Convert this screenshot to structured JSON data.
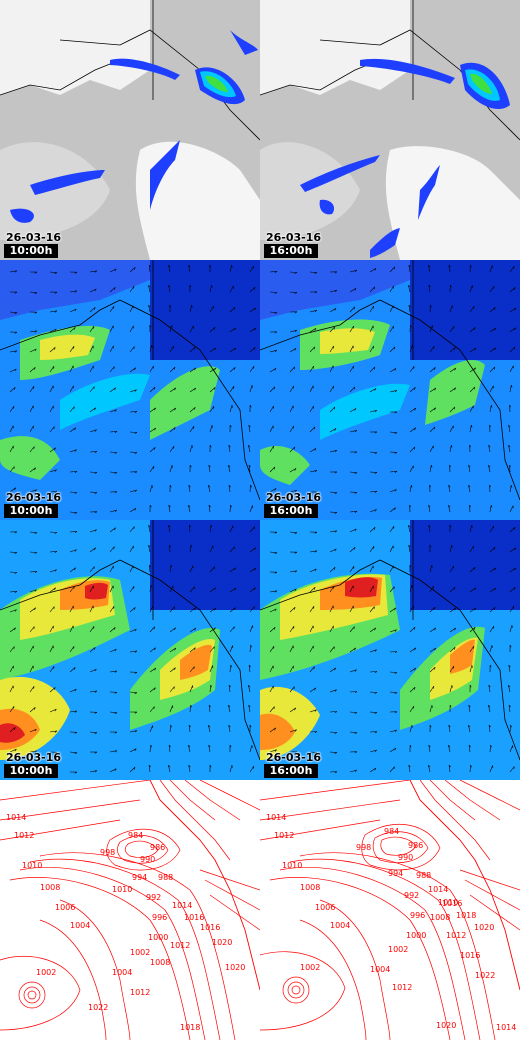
{
  "rows": [
    {
      "id": "clouds",
      "colors": {
        "bg": "#bdbdbd",
        "light": "#e6e6e6",
        "blue": "#1f3fff",
        "cyan": "#00c8ff",
        "green": "#40e040"
      },
      "panels": [
        {
          "date": "26-03-16",
          "time": "10:00h"
        },
        {
          "date": "26-03-16",
          "time": "16:00h"
        }
      ]
    },
    {
      "id": "wind-10m",
      "colors": {
        "bg": "#1a8cff",
        "dark": "#0a2fc8",
        "cyan": "#00c8ff",
        "green": "#60e060",
        "yellow": "#e8e83a"
      },
      "panels": [
        {
          "date": "26-03-16",
          "time": "10:00h"
        },
        {
          "date": "26-03-16",
          "time": "16:00h"
        }
      ]
    },
    {
      "id": "wind-gusts",
      "colors": {
        "bg": "#1aa0ff",
        "dark": "#0a2fc8",
        "green": "#60e060",
        "yellow": "#e8e83a",
        "orange": "#ff9020",
        "red": "#e02020"
      },
      "panels": [
        {
          "date": "26-03-16",
          "time": "10:00h"
        },
        {
          "date": "26-03-16",
          "time": "16:00h"
        }
      ]
    },
    {
      "id": "pressure",
      "colors": {
        "bg": "#ffffff",
        "line": "#ff0000"
      },
      "panels": [
        {
          "labels": [
            "1014",
            "1012",
            "1010",
            "1008",
            "1006",
            "1004",
            "1002",
            "998",
            "994",
            "990",
            "986",
            "984",
            "988",
            "992",
            "996",
            "1000",
            "1002",
            "1004",
            "1008",
            "1012",
            "1016",
            "1020",
            "1022",
            "1016",
            "1014",
            "1012",
            "1018",
            "1020",
            "1010"
          ]
        },
        {
          "labels": [
            "1014",
            "1012",
            "1010",
            "1008",
            "1006",
            "1004",
            "1002",
            "998",
            "994",
            "990",
            "986",
            "984",
            "988",
            "992",
            "996",
            "1000",
            "1002",
            "1004",
            "1008",
            "1012",
            "1016",
            "1020",
            "1018",
            "1016",
            "1014",
            "1012",
            "1010",
            "1020",
            "1022",
            "1014"
          ]
        }
      ]
    }
  ]
}
